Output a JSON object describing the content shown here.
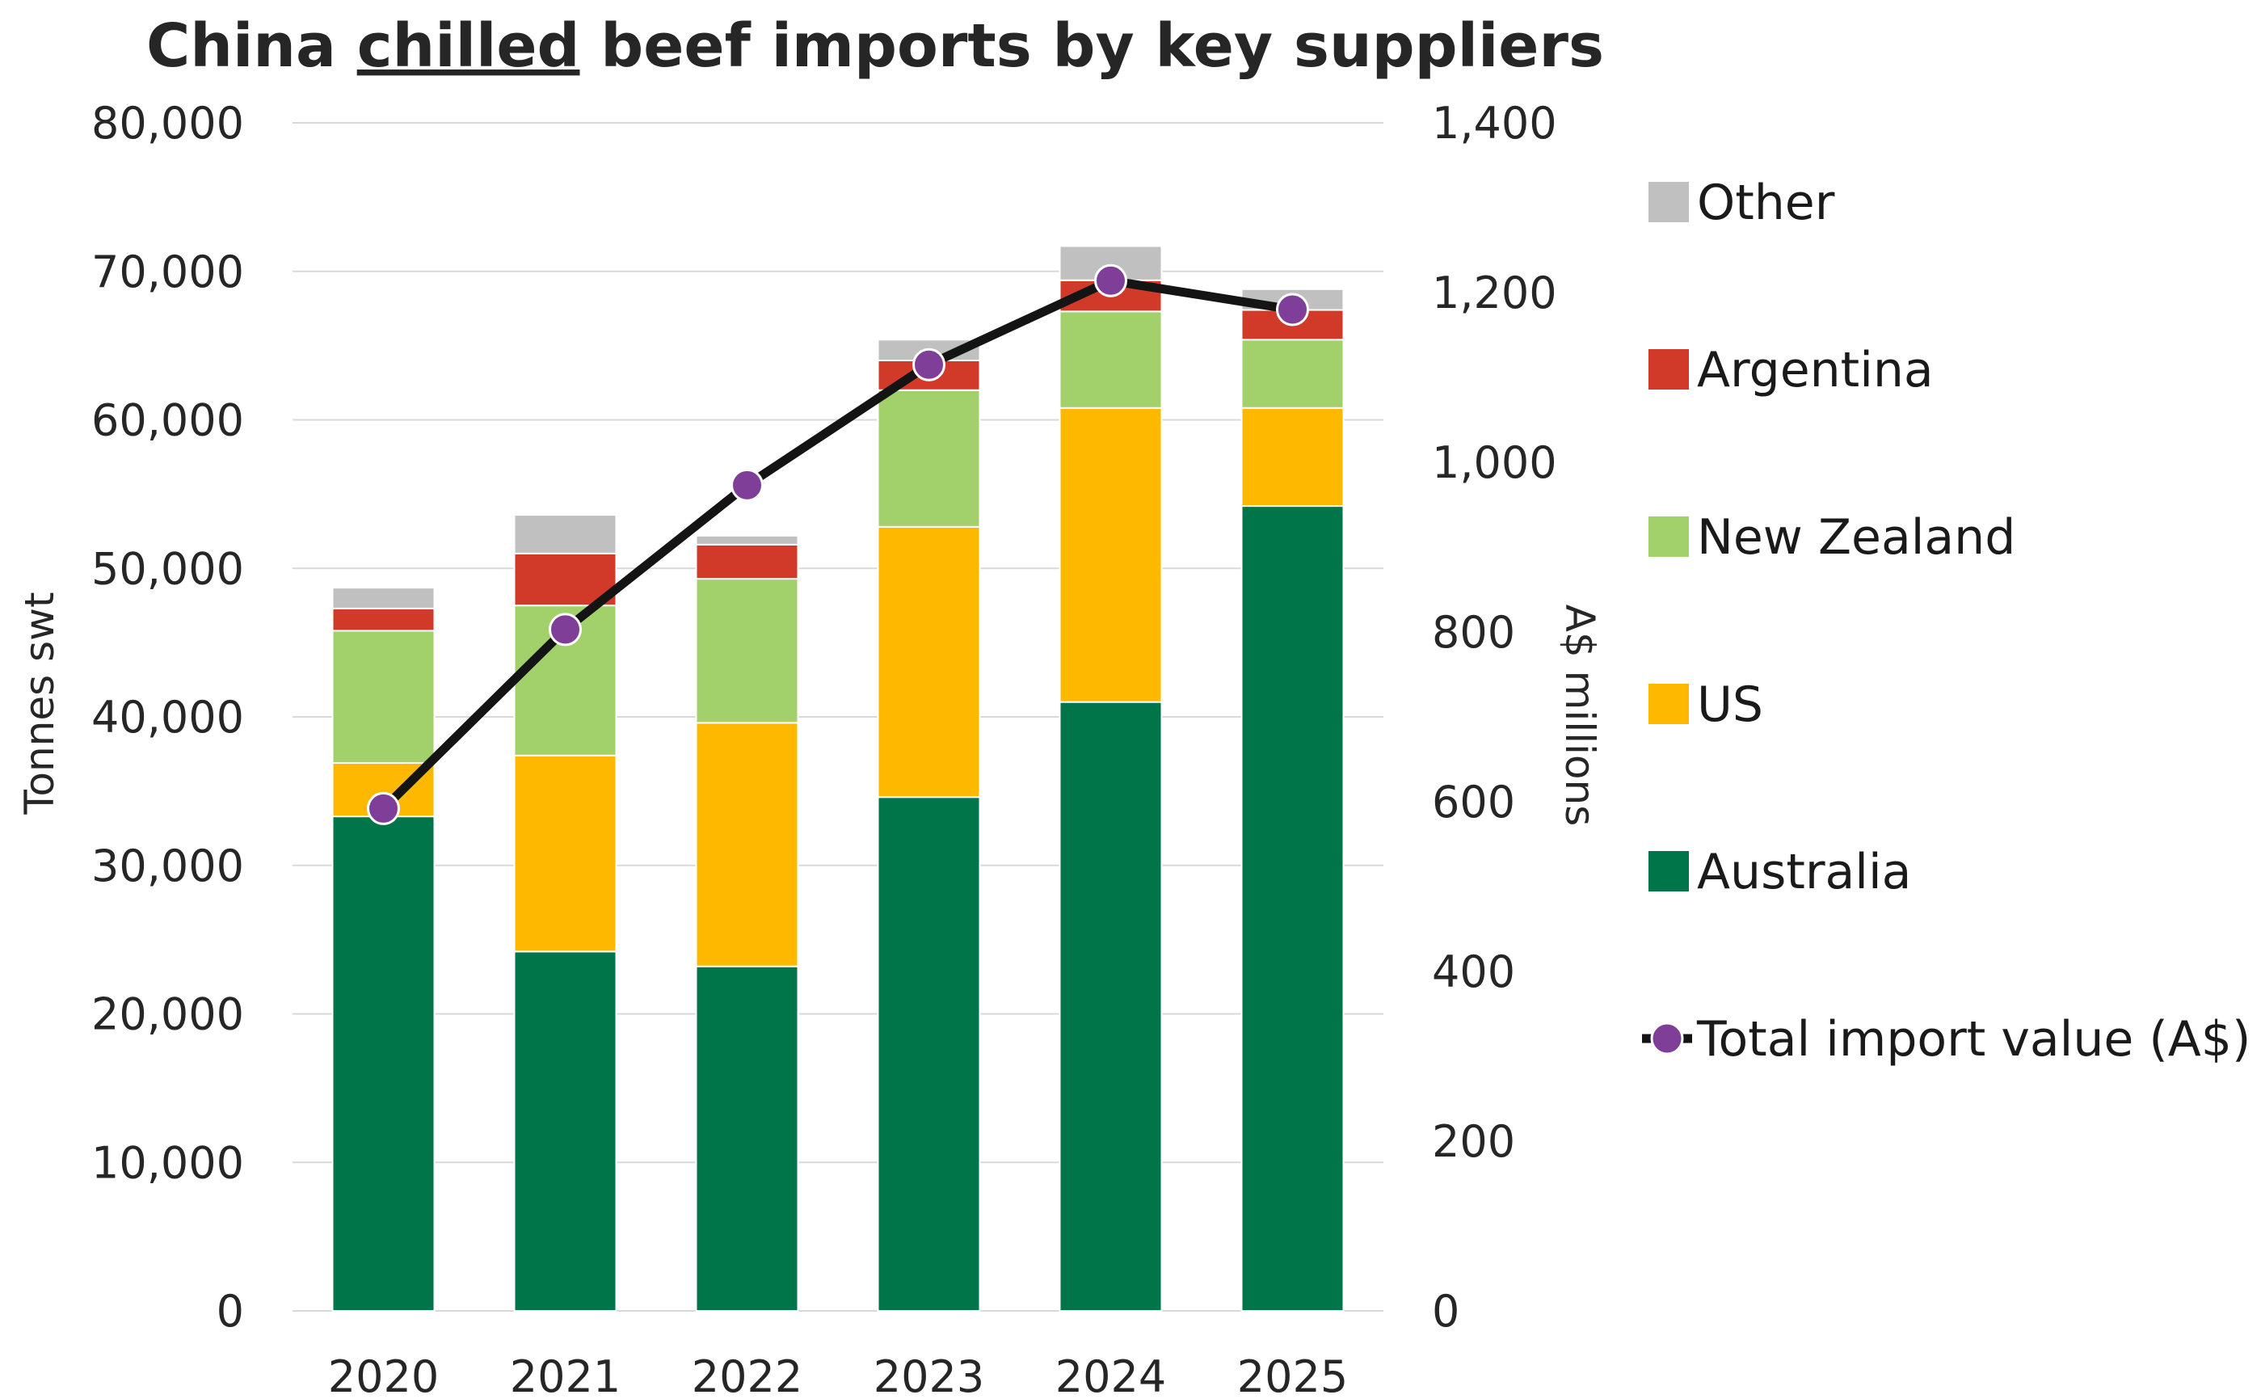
{
  "chart_data": {
    "type": "bar",
    "stacked": true,
    "title": "China chilled beef imports by key suppliers",
    "title_parts": {
      "before": "China ",
      "underlined": "chilled",
      "after": " beef imports by key suppliers"
    },
    "categories": [
      "2020",
      "2021",
      "2022",
      "2023",
      "2024",
      "2025"
    ],
    "ylabel": "Tonnes swt",
    "y2label": "A$ millions",
    "ylim": [
      0,
      80000
    ],
    "y2lim": [
      0,
      1400
    ],
    "yticks": [
      "0",
      "10,000",
      "20,000",
      "30,000",
      "40,000",
      "50,000",
      "60,000",
      "70,000",
      "80,000"
    ],
    "y2ticks": [
      "0",
      "200",
      "400",
      "600",
      "800",
      "1,000",
      "1,200",
      "1,400"
    ],
    "grid": true,
    "legend_position": "right",
    "series": [
      {
        "name": "Australia",
        "color": "#00754A",
        "values": [
          33300,
          24200,
          23200,
          34600,
          41000,
          54200
        ]
      },
      {
        "name": "US",
        "color": "#FFB800",
        "values": [
          3600,
          13200,
          16400,
          18200,
          19800,
          6600
        ]
      },
      {
        "name": "New Zealand",
        "color": "#A2D06A",
        "values": [
          8900,
          10100,
          9700,
          9200,
          6500,
          4600
        ]
      },
      {
        "name": "Argentina",
        "color": "#D13A28",
        "values": [
          1500,
          3500,
          2300,
          2000,
          2100,
          2000
        ]
      },
      {
        "name": "Other",
        "color": "#C0C0C0",
        "values": [
          1400,
          2600,
          600,
          1400,
          2300,
          1400
        ]
      }
    ],
    "line_series": {
      "name": "Total import value (A$)",
      "axis": "right",
      "line_color": "#141414",
      "marker_color": "#7F3F98",
      "values": [
        592,
        803,
        973,
        1115,
        1214,
        1180
      ]
    }
  }
}
